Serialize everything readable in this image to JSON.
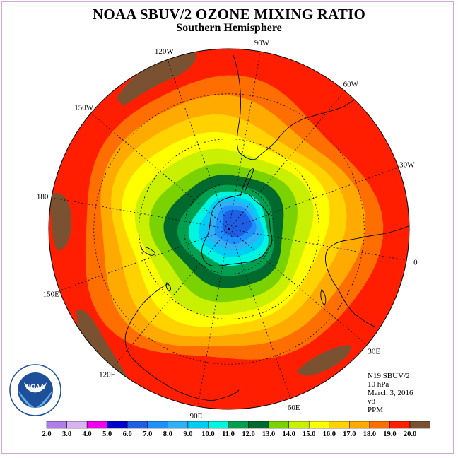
{
  "title": "NOAA SBUV/2 OZONE MIXING RATIO",
  "subtitle": "Southern Hemisphere",
  "info": {
    "instrument": "N19 SBUV/2",
    "level": "10 hPa",
    "date": "March 3, 2016",
    "version": "v8",
    "units": "PPM"
  },
  "logo_text": "NOAA",
  "logo_ring_text": "NATIONAL OCEANIC AND ATMOSPHERIC ADMINISTRATION · U.S. DEPARTMENT OF COMMERCE",
  "longitude_labels": [
    "90W",
    "60W",
    "30W",
    "0",
    "30E",
    "60E",
    "90E",
    "120E",
    "150E",
    "180",
    "150W",
    "120W"
  ],
  "colorbar": {
    "ticks": [
      "2.0",
      "3.0",
      "4.0",
      "5.0",
      "6.0",
      "7.0",
      "8.0",
      "9.0",
      "10.0",
      "11.0",
      "12.0",
      "13.0",
      "14.0",
      "15.0",
      "16.0",
      "17.0",
      "18.0",
      "19.0",
      "20.0"
    ],
    "colors": [
      "#b07ee8",
      "#d9b2f2",
      "#ee00ee",
      "#0000cd",
      "#1e5fe6",
      "#1e90ff",
      "#2fb0f5",
      "#00cdf5",
      "#00f5e0",
      "#00a050",
      "#006a2e",
      "#7ad200",
      "#c8f000",
      "#ffff00",
      "#ffd200",
      "#ffaa00",
      "#ff6e00",
      "#ff1e00",
      "#7a5232"
    ]
  },
  "map_colors": {
    "ocean_outer": "#ff1e00",
    "land_masked": "#7a5232",
    "coastline": "#000000",
    "grid": "#000000"
  }
}
